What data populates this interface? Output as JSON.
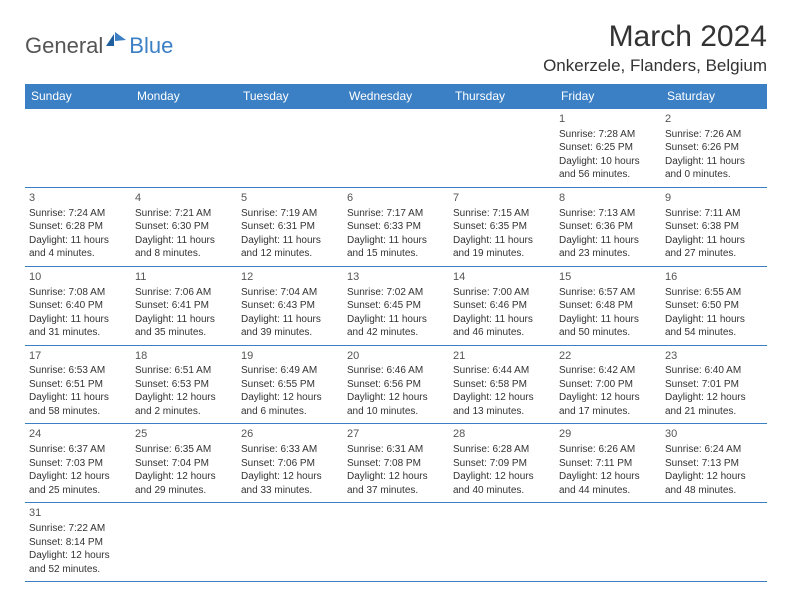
{
  "logo": {
    "general": "General",
    "blue": "Blue"
  },
  "title": "March 2024",
  "location": "Onkerzele, Flanders, Belgium",
  "colors": {
    "header_bg": "#3b7fc4",
    "border": "#3b7fc4",
    "text": "#333333"
  },
  "dayHeaders": [
    "Sunday",
    "Monday",
    "Tuesday",
    "Wednesday",
    "Thursday",
    "Friday",
    "Saturday"
  ],
  "weeks": [
    [
      null,
      null,
      null,
      null,
      null,
      {
        "n": "1",
        "sr": "Sunrise: 7:28 AM",
        "ss": "Sunset: 6:25 PM",
        "dl1": "Daylight: 10 hours",
        "dl2": "and 56 minutes."
      },
      {
        "n": "2",
        "sr": "Sunrise: 7:26 AM",
        "ss": "Sunset: 6:26 PM",
        "dl1": "Daylight: 11 hours",
        "dl2": "and 0 minutes."
      }
    ],
    [
      {
        "n": "3",
        "sr": "Sunrise: 7:24 AM",
        "ss": "Sunset: 6:28 PM",
        "dl1": "Daylight: 11 hours",
        "dl2": "and 4 minutes."
      },
      {
        "n": "4",
        "sr": "Sunrise: 7:21 AM",
        "ss": "Sunset: 6:30 PM",
        "dl1": "Daylight: 11 hours",
        "dl2": "and 8 minutes."
      },
      {
        "n": "5",
        "sr": "Sunrise: 7:19 AM",
        "ss": "Sunset: 6:31 PM",
        "dl1": "Daylight: 11 hours",
        "dl2": "and 12 minutes."
      },
      {
        "n": "6",
        "sr": "Sunrise: 7:17 AM",
        "ss": "Sunset: 6:33 PM",
        "dl1": "Daylight: 11 hours",
        "dl2": "and 15 minutes."
      },
      {
        "n": "7",
        "sr": "Sunrise: 7:15 AM",
        "ss": "Sunset: 6:35 PM",
        "dl1": "Daylight: 11 hours",
        "dl2": "and 19 minutes."
      },
      {
        "n": "8",
        "sr": "Sunrise: 7:13 AM",
        "ss": "Sunset: 6:36 PM",
        "dl1": "Daylight: 11 hours",
        "dl2": "and 23 minutes."
      },
      {
        "n": "9",
        "sr": "Sunrise: 7:11 AM",
        "ss": "Sunset: 6:38 PM",
        "dl1": "Daylight: 11 hours",
        "dl2": "and 27 minutes."
      }
    ],
    [
      {
        "n": "10",
        "sr": "Sunrise: 7:08 AM",
        "ss": "Sunset: 6:40 PM",
        "dl1": "Daylight: 11 hours",
        "dl2": "and 31 minutes."
      },
      {
        "n": "11",
        "sr": "Sunrise: 7:06 AM",
        "ss": "Sunset: 6:41 PM",
        "dl1": "Daylight: 11 hours",
        "dl2": "and 35 minutes."
      },
      {
        "n": "12",
        "sr": "Sunrise: 7:04 AM",
        "ss": "Sunset: 6:43 PM",
        "dl1": "Daylight: 11 hours",
        "dl2": "and 39 minutes."
      },
      {
        "n": "13",
        "sr": "Sunrise: 7:02 AM",
        "ss": "Sunset: 6:45 PM",
        "dl1": "Daylight: 11 hours",
        "dl2": "and 42 minutes."
      },
      {
        "n": "14",
        "sr": "Sunrise: 7:00 AM",
        "ss": "Sunset: 6:46 PM",
        "dl1": "Daylight: 11 hours",
        "dl2": "and 46 minutes."
      },
      {
        "n": "15",
        "sr": "Sunrise: 6:57 AM",
        "ss": "Sunset: 6:48 PM",
        "dl1": "Daylight: 11 hours",
        "dl2": "and 50 minutes."
      },
      {
        "n": "16",
        "sr": "Sunrise: 6:55 AM",
        "ss": "Sunset: 6:50 PM",
        "dl1": "Daylight: 11 hours",
        "dl2": "and 54 minutes."
      }
    ],
    [
      {
        "n": "17",
        "sr": "Sunrise: 6:53 AM",
        "ss": "Sunset: 6:51 PM",
        "dl1": "Daylight: 11 hours",
        "dl2": "and 58 minutes."
      },
      {
        "n": "18",
        "sr": "Sunrise: 6:51 AM",
        "ss": "Sunset: 6:53 PM",
        "dl1": "Daylight: 12 hours",
        "dl2": "and 2 minutes."
      },
      {
        "n": "19",
        "sr": "Sunrise: 6:49 AM",
        "ss": "Sunset: 6:55 PM",
        "dl1": "Daylight: 12 hours",
        "dl2": "and 6 minutes."
      },
      {
        "n": "20",
        "sr": "Sunrise: 6:46 AM",
        "ss": "Sunset: 6:56 PM",
        "dl1": "Daylight: 12 hours",
        "dl2": "and 10 minutes."
      },
      {
        "n": "21",
        "sr": "Sunrise: 6:44 AM",
        "ss": "Sunset: 6:58 PM",
        "dl1": "Daylight: 12 hours",
        "dl2": "and 13 minutes."
      },
      {
        "n": "22",
        "sr": "Sunrise: 6:42 AM",
        "ss": "Sunset: 7:00 PM",
        "dl1": "Daylight: 12 hours",
        "dl2": "and 17 minutes."
      },
      {
        "n": "23",
        "sr": "Sunrise: 6:40 AM",
        "ss": "Sunset: 7:01 PM",
        "dl1": "Daylight: 12 hours",
        "dl2": "and 21 minutes."
      }
    ],
    [
      {
        "n": "24",
        "sr": "Sunrise: 6:37 AM",
        "ss": "Sunset: 7:03 PM",
        "dl1": "Daylight: 12 hours",
        "dl2": "and 25 minutes."
      },
      {
        "n": "25",
        "sr": "Sunrise: 6:35 AM",
        "ss": "Sunset: 7:04 PM",
        "dl1": "Daylight: 12 hours",
        "dl2": "and 29 minutes."
      },
      {
        "n": "26",
        "sr": "Sunrise: 6:33 AM",
        "ss": "Sunset: 7:06 PM",
        "dl1": "Daylight: 12 hours",
        "dl2": "and 33 minutes."
      },
      {
        "n": "27",
        "sr": "Sunrise: 6:31 AM",
        "ss": "Sunset: 7:08 PM",
        "dl1": "Daylight: 12 hours",
        "dl2": "and 37 minutes."
      },
      {
        "n": "28",
        "sr": "Sunrise: 6:28 AM",
        "ss": "Sunset: 7:09 PM",
        "dl1": "Daylight: 12 hours",
        "dl2": "and 40 minutes."
      },
      {
        "n": "29",
        "sr": "Sunrise: 6:26 AM",
        "ss": "Sunset: 7:11 PM",
        "dl1": "Daylight: 12 hours",
        "dl2": "and 44 minutes."
      },
      {
        "n": "30",
        "sr": "Sunrise: 6:24 AM",
        "ss": "Sunset: 7:13 PM",
        "dl1": "Daylight: 12 hours",
        "dl2": "and 48 minutes."
      }
    ],
    [
      {
        "n": "31",
        "sr": "Sunrise: 7:22 AM",
        "ss": "Sunset: 8:14 PM",
        "dl1": "Daylight: 12 hours",
        "dl2": "and 52 minutes."
      },
      null,
      null,
      null,
      null,
      null,
      null
    ]
  ]
}
